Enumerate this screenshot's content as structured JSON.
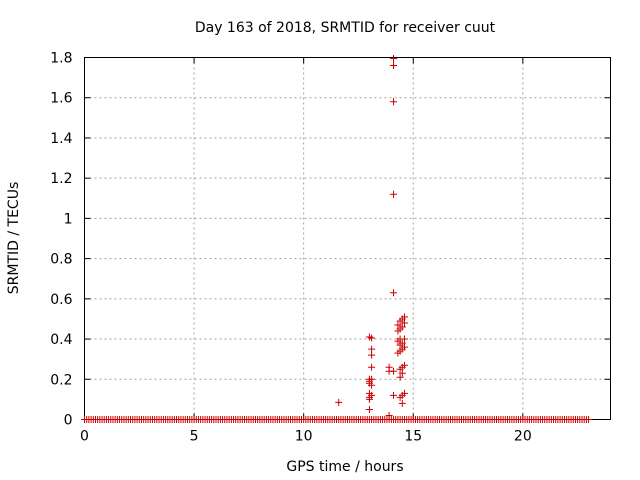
{
  "chart_data": {
    "type": "scatter",
    "title": "Day 163 of 2018, SRMTID for receiver cuut",
    "xlabel": "GPS time / hours",
    "ylabel": "SRMTID / TECUs",
    "xlim": [
      0,
      24
    ],
    "ylim": [
      0,
      1.8
    ],
    "xticks": [
      0,
      5,
      10,
      15,
      20
    ],
    "xtick_labels": [
      "0",
      "5",
      "10",
      "15",
      "20"
    ],
    "yticks": [
      0,
      0.2,
      0.4,
      0.6,
      0.8,
      1.0,
      1.2,
      1.4,
      1.6,
      1.8
    ],
    "ytick_labels": [
      "0",
      "0.2",
      "0.4",
      "0.6",
      "0.8",
      "1",
      "1.2",
      "1.4",
      "1.6",
      "1.8"
    ],
    "grid": true,
    "marker": "+",
    "series": [
      {
        "name": "SRMTID",
        "color": "#cc0000",
        "baseline": {
          "x_start": 0.0,
          "x_end": 23.0,
          "x_step": 0.1,
          "y": 0.0
        },
        "points": [
          [
            11.6,
            0.085
          ],
          [
            13.0,
            0.41
          ],
          [
            13.0,
            0.2
          ],
          [
            13.0,
            0.19
          ],
          [
            13.0,
            0.18
          ],
          [
            13.0,
            0.13
          ],
          [
            13.0,
            0.11
          ],
          [
            13.0,
            0.1
          ],
          [
            13.0,
            0.05
          ],
          [
            13.1,
            0.405
          ],
          [
            13.1,
            0.35
          ],
          [
            13.1,
            0.32
          ],
          [
            13.1,
            0.26
          ],
          [
            13.1,
            0.2
          ],
          [
            13.1,
            0.17
          ],
          [
            13.1,
            0.12
          ],
          [
            13.9,
            0.26
          ],
          [
            13.9,
            0.24
          ],
          [
            13.9,
            0.02
          ],
          [
            14.1,
            1.795
          ],
          [
            14.1,
            1.76
          ],
          [
            14.1,
            1.58
          ],
          [
            14.1,
            1.12
          ],
          [
            14.1,
            0.63
          ],
          [
            14.1,
            0.24
          ],
          [
            14.1,
            0.12
          ],
          [
            14.3,
            0.47
          ],
          [
            14.3,
            0.44
          ],
          [
            14.3,
            0.39
          ],
          [
            14.3,
            0.33
          ],
          [
            14.4,
            0.49
          ],
          [
            14.4,
            0.45
          ],
          [
            14.4,
            0.4
          ],
          [
            14.4,
            0.37
          ],
          [
            14.4,
            0.34
          ],
          [
            14.4,
            0.25
          ],
          [
            14.4,
            0.21
          ],
          [
            14.4,
            0.11
          ],
          [
            14.5,
            0.5
          ],
          [
            14.5,
            0.46
          ],
          [
            14.5,
            0.38
          ],
          [
            14.5,
            0.35
          ],
          [
            14.5,
            0.26
          ],
          [
            14.5,
            0.23
          ],
          [
            14.5,
            0.12
          ],
          [
            14.5,
            0.08
          ],
          [
            14.6,
            0.51
          ],
          [
            14.6,
            0.48
          ],
          [
            14.6,
            0.4
          ],
          [
            14.6,
            0.36
          ],
          [
            14.6,
            0.27
          ],
          [
            14.6,
            0.13
          ]
        ]
      }
    ]
  }
}
